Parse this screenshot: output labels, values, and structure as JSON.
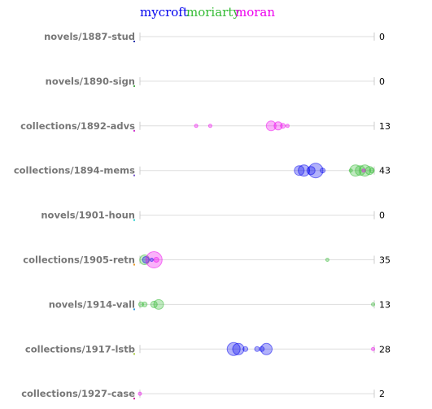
{
  "legend": [
    {
      "name": "mycroft",
      "color": "#0000ee"
    },
    {
      "name": "moriarty",
      "color": "#33bb33"
    },
    {
      "name": "moran",
      "color": "#ee00ee"
    }
  ],
  "chart_data": {
    "type": "scatter",
    "x_range": [
      0,
      1
    ],
    "grid": false,
    "legend_placement": "top",
    "rows": [
      {
        "label": "novels/1887-stud",
        "underline": "#2233aa",
        "count": "0",
        "points": []
      },
      {
        "label": "novels/1890-sign",
        "underline": "#44aa44",
        "count": "0",
        "points": []
      },
      {
        "label": "collections/1892-advs",
        "underline": "#cc33cc",
        "count": "13",
        "points": [
          {
            "x": 0.24,
            "r": 2,
            "s": "moran"
          },
          {
            "x": 0.3,
            "r": 2,
            "s": "moran"
          },
          {
            "x": 0.56,
            "r": 6,
            "s": "moran"
          },
          {
            "x": 0.59,
            "r": 5,
            "s": "moran"
          },
          {
            "x": 0.61,
            "r": 3,
            "s": "moran"
          },
          {
            "x": 0.63,
            "r": 2,
            "s": "moran"
          }
        ]
      },
      {
        "label": "collections/1894-mems",
        "underline": "#7755cc",
        "count": "43",
        "points": [
          {
            "x": 0.68,
            "r": 6,
            "s": "mycroft"
          },
          {
            "x": 0.7,
            "r": 7,
            "s": "mycroft"
          },
          {
            "x": 0.73,
            "r": 5,
            "s": "mycroft"
          },
          {
            "x": 0.75,
            "r": 9,
            "s": "mycroft"
          },
          {
            "x": 0.78,
            "r": 3,
            "s": "mycroft"
          },
          {
            "x": 0.92,
            "r": 7,
            "s": "moriarty"
          },
          {
            "x": 0.94,
            "r": 6,
            "s": "moriarty"
          },
          {
            "x": 0.96,
            "r": 7,
            "s": "moriarty"
          },
          {
            "x": 0.98,
            "r": 5,
            "s": "moriarty"
          },
          {
            "x": 0.99,
            "r": 3,
            "s": "moriarty"
          },
          {
            "x": 0.9,
            "r": 2,
            "s": "moriarty"
          },
          {
            "x": 0.955,
            "r": 2,
            "s": "moran"
          }
        ]
      },
      {
        "label": "novels/1901-houn",
        "underline": "#22cccc",
        "count": "0",
        "points": []
      },
      {
        "label": "collections/1905-retn",
        "underline": "#ee9922",
        "count": "35",
        "points": [
          {
            "x": 0.02,
            "r": 6,
            "s": "moriarty"
          },
          {
            "x": 0.025,
            "r": 4,
            "s": "mycroft"
          },
          {
            "x": 0.06,
            "r": 10,
            "s": "moran"
          },
          {
            "x": 0.07,
            "r": 3,
            "s": "moran"
          },
          {
            "x": 0.05,
            "r": 2,
            "s": "mycroft"
          },
          {
            "x": 0.8,
            "r": 2,
            "s": "moriarty"
          }
        ]
      },
      {
        "label": "novels/1914-vall",
        "underline": "#3399dd",
        "count": "13",
        "points": [
          {
            "x": 0.005,
            "r": 3,
            "s": "moriarty"
          },
          {
            "x": 0.02,
            "r": 3,
            "s": "moriarty"
          },
          {
            "x": 0.06,
            "r": 4,
            "s": "moriarty"
          },
          {
            "x": 0.08,
            "r": 6,
            "s": "moriarty"
          },
          {
            "x": 0.995,
            "r": 2,
            "s": "moriarty"
          }
        ]
      },
      {
        "label": "collections/1917-lstb",
        "underline": "#aacc44",
        "count": "28",
        "points": [
          {
            "x": 0.4,
            "r": 8,
            "s": "mycroft"
          },
          {
            "x": 0.42,
            "r": 7,
            "s": "mycroft"
          },
          {
            "x": 0.45,
            "r": 3,
            "s": "mycroft"
          },
          {
            "x": 0.5,
            "r": 3,
            "s": "mycroft"
          },
          {
            "x": 0.52,
            "r": 3,
            "s": "mycroft"
          },
          {
            "x": 0.54,
            "r": 7,
            "s": "mycroft"
          },
          {
            "x": 0.995,
            "r": 2,
            "s": "moran"
          }
        ]
      },
      {
        "label": "collections/1927-case",
        "underline": "#cc2299",
        "count": "2",
        "points": [
          {
            "x": 0.0,
            "r": 2,
            "s": "moran"
          }
        ]
      }
    ]
  }
}
